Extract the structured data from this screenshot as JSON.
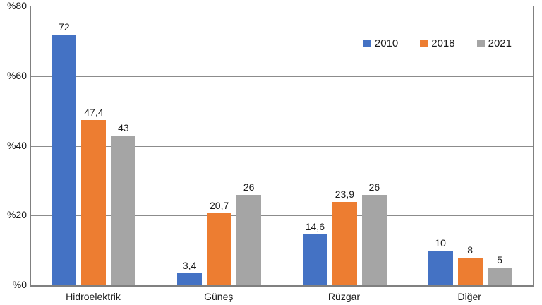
{
  "chart_data": {
    "type": "bar",
    "title": "",
    "categories": [
      "Hidroelektrik",
      "Güneş",
      "Rüzgar",
      "Diğer"
    ],
    "series": [
      {
        "name": "2010",
        "color": "#4472C4",
        "values": [
          72,
          3.4,
          14.6,
          10
        ],
        "labels": [
          "72",
          "3,4",
          "14,6",
          "10"
        ]
      },
      {
        "name": "2018",
        "color": "#ED7D31",
        "values": [
          47.4,
          20.7,
          23.9,
          8
        ],
        "labels": [
          "47,4",
          "20,7",
          "23,9",
          "8"
        ]
      },
      {
        "name": "2021",
        "color": "#A5A5A5",
        "values": [
          43,
          26,
          26,
          5
        ],
        "labels": [
          "43",
          "26",
          "26",
          "5"
        ]
      }
    ],
    "xlabel": "",
    "ylabel": "",
    "ylim": [
      0,
      80
    ],
    "yticks": [
      0,
      20,
      40,
      60,
      80
    ],
    "ytick_labels": [
      "%0",
      "%20",
      "%40",
      "%60",
      "%80"
    ],
    "grid": true,
    "legend_position": "top-right"
  },
  "colors": {
    "background": "#FFFFFF",
    "grid": "#8C8C8C",
    "border": "#808080",
    "text": "#1A1A1A",
    "series_2010": "#4472C4",
    "series_2018": "#ED7D31",
    "series_2021": "#A5A5A5"
  }
}
